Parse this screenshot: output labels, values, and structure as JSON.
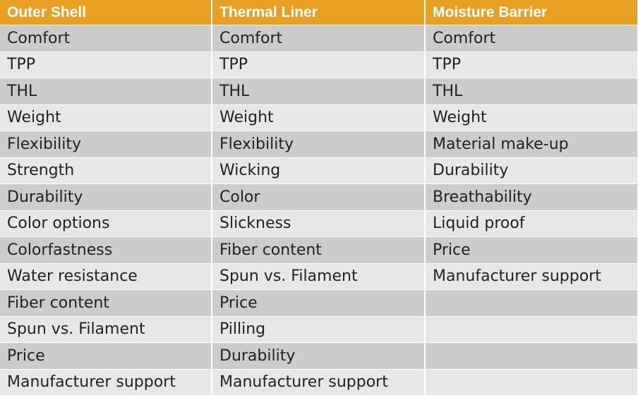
{
  "table": {
    "headers": [
      "Outer Shell",
      "Thermal Liner",
      "Moisture Barrier"
    ],
    "rows": [
      [
        "Comfort",
        "Comfort",
        "Comfort"
      ],
      [
        "TPP",
        "TPP",
        "TPP"
      ],
      [
        "THL",
        "THL",
        "THL"
      ],
      [
        "Weight",
        "Weight",
        "Weight"
      ],
      [
        "Flexibility",
        "Flexibility",
        "Material make-up"
      ],
      [
        "Strength",
        "Wicking",
        "Durability"
      ],
      [
        "Durability",
        "Color",
        "Breathability"
      ],
      [
        "Color options",
        "Slickness",
        "Liquid proof"
      ],
      [
        "Colorfastness",
        "Fiber content",
        "Price"
      ],
      [
        "Water resistance",
        "Spun vs. Filament",
        "Manufacturer support"
      ],
      [
        "Fiber content",
        "Price",
        ""
      ],
      [
        "Spun vs. Filament",
        "Pilling",
        ""
      ],
      [
        "Price",
        "Durability",
        ""
      ],
      [
        "Manufacturer support",
        "Manufacturer support",
        ""
      ]
    ]
  },
  "colors": {
    "header_background": "#e8a022",
    "header_text": "#ffffff",
    "row_odd_background": "#cccccc",
    "row_even_background": "#e7e7e7",
    "body_text": "#222222"
  }
}
